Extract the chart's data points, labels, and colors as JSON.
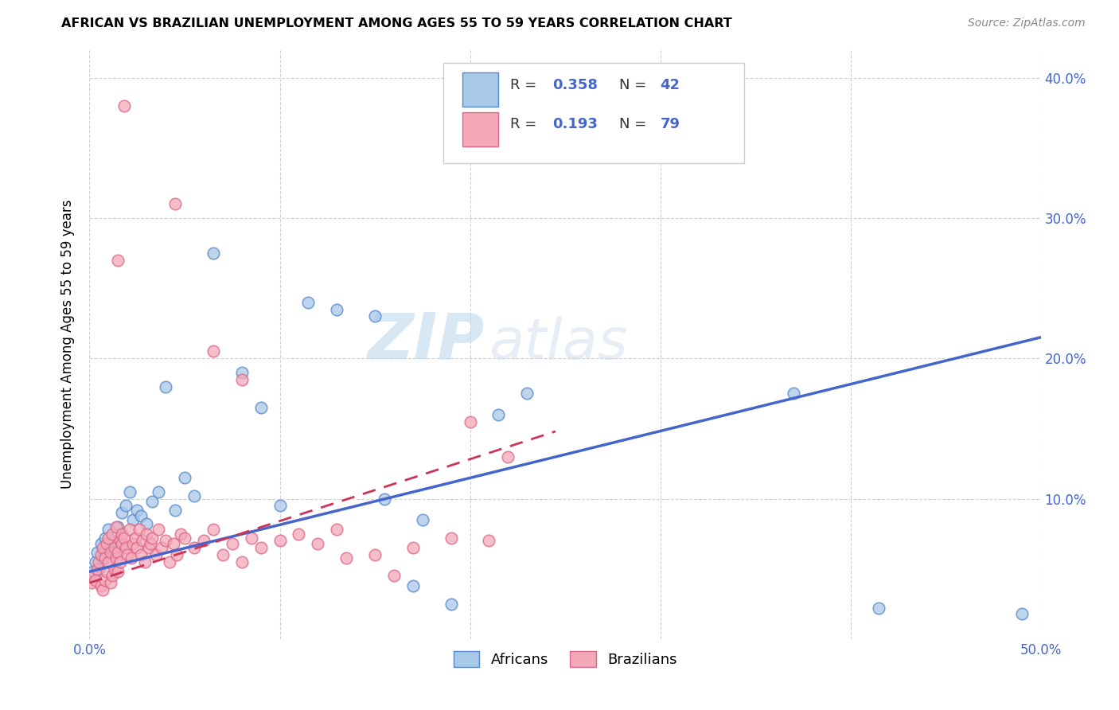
{
  "title": "AFRICAN VS BRAZILIAN UNEMPLOYMENT AMONG AGES 55 TO 59 YEARS CORRELATION CHART",
  "source": "Source: ZipAtlas.com",
  "ylabel": "Unemployment Among Ages 55 to 59 years",
  "xlim": [
    0.0,
    0.5
  ],
  "ylim": [
    0.0,
    0.42
  ],
  "xticks": [
    0.0,
    0.1,
    0.2,
    0.3,
    0.4,
    0.5
  ],
  "yticks": [
    0.1,
    0.2,
    0.3,
    0.4
  ],
  "xticklabels": [
    "0.0%",
    "",
    "",
    "",
    "",
    "50.0%"
  ],
  "yticklabels_right": [
    "10.0%",
    "20.0%",
    "30.0%",
    "40.0%"
  ],
  "african_color": "#a8c8e8",
  "brazilian_color": "#f4a8b8",
  "african_edge": "#5588cc",
  "brazilian_edge": "#dd6688",
  "trend_african_color": "#4466cc",
  "trend_brazilian_color": "#cc3355",
  "background_color": "#ffffff",
  "grid_color": "#cccccc",
  "tick_color": "#4466cc",
  "africans_x": [
    0.002,
    0.003,
    0.004,
    0.005,
    0.006,
    0.007,
    0.008,
    0.009,
    0.01,
    0.011,
    0.012,
    0.013,
    0.015,
    0.017,
    0.019,
    0.021,
    0.023,
    0.025,
    0.027,
    0.03,
    0.033,
    0.036,
    0.04,
    0.045,
    0.05,
    0.055,
    0.065,
    0.08,
    0.09,
    0.1,
    0.115,
    0.13,
    0.15,
    0.17,
    0.19,
    0.215,
    0.23,
    0.155,
    0.175,
    0.415,
    0.49,
    0.37
  ],
  "africans_y": [
    0.048,
    0.055,
    0.062,
    0.05,
    0.068,
    0.058,
    0.072,
    0.06,
    0.078,
    0.065,
    0.07,
    0.062,
    0.08,
    0.09,
    0.095,
    0.105,
    0.085,
    0.092,
    0.088,
    0.082,
    0.098,
    0.105,
    0.18,
    0.092,
    0.115,
    0.102,
    0.275,
    0.19,
    0.165,
    0.095,
    0.24,
    0.235,
    0.23,
    0.038,
    0.025,
    0.16,
    0.175,
    0.1,
    0.085,
    0.022,
    0.018,
    0.175
  ],
  "brazilians_x": [
    0.001,
    0.002,
    0.003,
    0.004,
    0.005,
    0.006,
    0.006,
    0.007,
    0.007,
    0.008,
    0.008,
    0.009,
    0.009,
    0.01,
    0.01,
    0.011,
    0.011,
    0.012,
    0.012,
    0.013,
    0.013,
    0.014,
    0.014,
    0.015,
    0.015,
    0.016,
    0.016,
    0.017,
    0.017,
    0.018,
    0.019,
    0.02,
    0.021,
    0.022,
    0.023,
    0.024,
    0.025,
    0.026,
    0.027,
    0.028,
    0.029,
    0.03,
    0.031,
    0.032,
    0.033,
    0.035,
    0.036,
    0.038,
    0.04,
    0.042,
    0.044,
    0.046,
    0.048,
    0.05,
    0.055,
    0.06,
    0.065,
    0.07,
    0.075,
    0.08,
    0.085,
    0.09,
    0.1,
    0.11,
    0.12,
    0.13,
    0.15,
    0.17,
    0.19,
    0.21,
    0.018,
    0.045,
    0.015,
    0.065,
    0.08,
    0.2,
    0.22,
    0.135,
    0.16
  ],
  "brazilians_y": [
    0.04,
    0.045,
    0.042,
    0.05,
    0.055,
    0.06,
    0.038,
    0.065,
    0.035,
    0.058,
    0.042,
    0.068,
    0.048,
    0.055,
    0.072,
    0.062,
    0.04,
    0.075,
    0.045,
    0.065,
    0.05,
    0.058,
    0.08,
    0.062,
    0.048,
    0.07,
    0.055,
    0.068,
    0.075,
    0.072,
    0.065,
    0.06,
    0.078,
    0.058,
    0.068,
    0.072,
    0.065,
    0.078,
    0.06,
    0.07,
    0.055,
    0.075,
    0.065,
    0.068,
    0.072,
    0.06,
    0.078,
    0.065,
    0.07,
    0.055,
    0.068,
    0.06,
    0.075,
    0.072,
    0.065,
    0.07,
    0.078,
    0.06,
    0.068,
    0.055,
    0.072,
    0.065,
    0.07,
    0.075,
    0.068,
    0.078,
    0.06,
    0.065,
    0.072,
    0.07,
    0.38,
    0.31,
    0.27,
    0.205,
    0.185,
    0.155,
    0.13,
    0.058,
    0.045
  ],
  "af_trend_x": [
    0.0,
    0.5
  ],
  "af_trend_y": [
    0.048,
    0.215
  ],
  "br_trend_x": [
    0.0,
    0.245
  ],
  "br_trend_y": [
    0.04,
    0.148
  ]
}
